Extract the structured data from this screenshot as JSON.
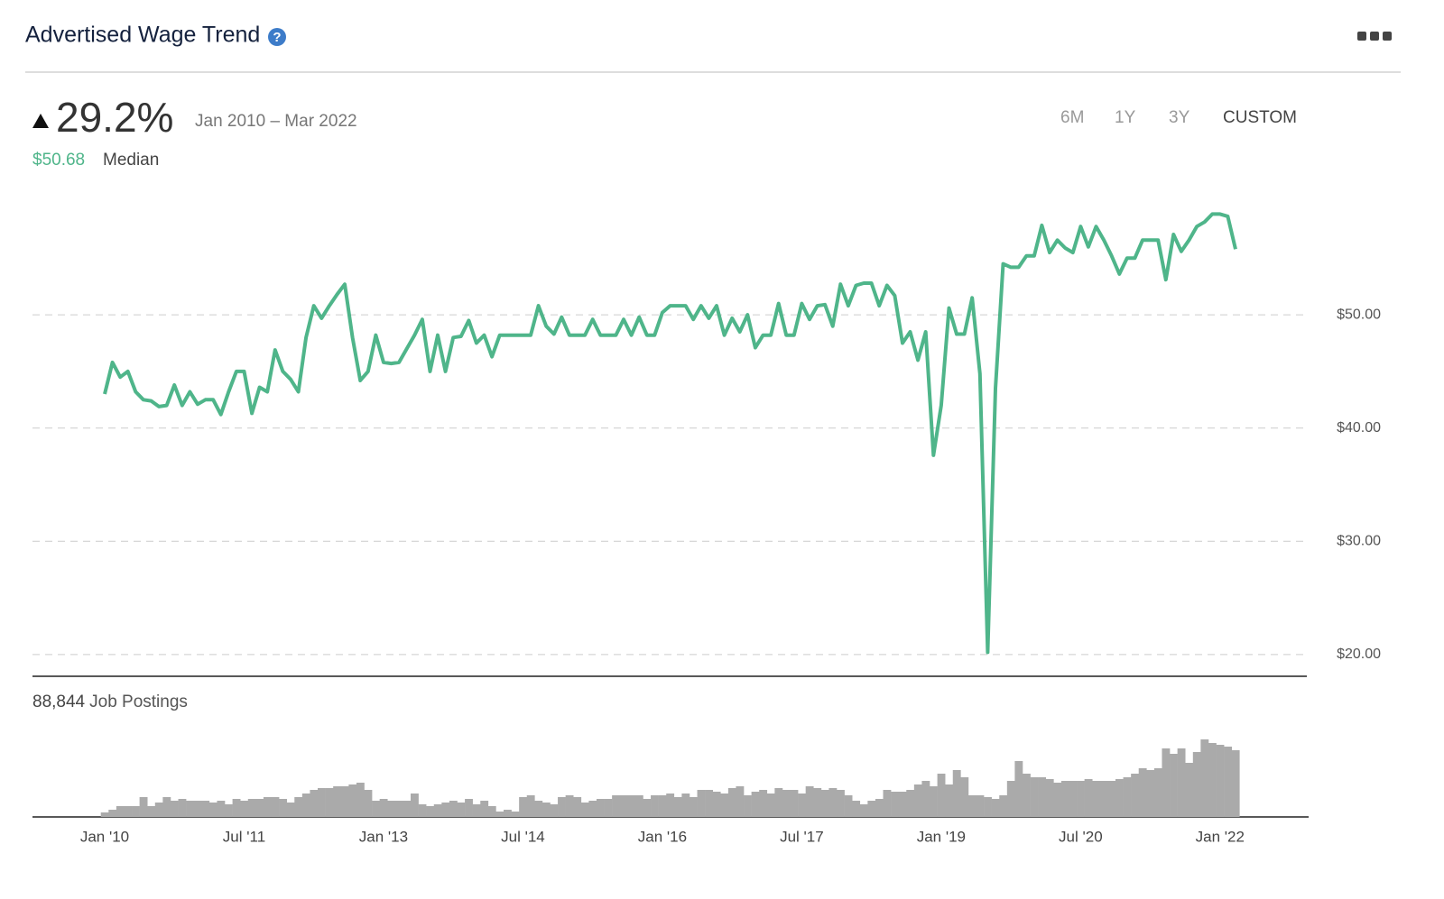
{
  "header": {
    "title": "Advertised Wage Trend"
  },
  "summary": {
    "change": "29.2%",
    "period": "Jan 2010 – Mar 2022",
    "median_value": "$50.68",
    "median_label": "Median"
  },
  "range_buttons": [
    "6M",
    "1Y",
    "3Y",
    "CUSTOM"
  ],
  "postings": {
    "count": "88,844",
    "label": "Job Postings"
  },
  "chart_data": [
    {
      "type": "line",
      "x": [
        "2010-01",
        "2010-02",
        "2010-03",
        "2010-04",
        "2010-05",
        "2010-06",
        "2010-07",
        "2010-08",
        "2010-09",
        "2010-10",
        "2010-11",
        "2010-12",
        "2011-01",
        "2011-02",
        "2011-03",
        "2011-04",
        "2011-05",
        "2011-06",
        "2011-07",
        "2011-08",
        "2011-09",
        "2011-10",
        "2011-11",
        "2011-12",
        "2012-01",
        "2012-02",
        "2012-03",
        "2012-04",
        "2012-05",
        "2012-06",
        "2012-07",
        "2012-08",
        "2012-09",
        "2012-10",
        "2012-11",
        "2012-12",
        "2013-01",
        "2013-02",
        "2013-03",
        "2013-04",
        "2013-05",
        "2013-06",
        "2013-07",
        "2013-08",
        "2013-09",
        "2013-10",
        "2013-11",
        "2013-12",
        "2014-01",
        "2014-02",
        "2014-03",
        "2014-04",
        "2014-05",
        "2014-06",
        "2014-07",
        "2014-08",
        "2014-09",
        "2014-10",
        "2014-11",
        "2014-12",
        "2015-01",
        "2015-02",
        "2015-03",
        "2015-04",
        "2015-05",
        "2015-06",
        "2015-07",
        "2015-08",
        "2015-09",
        "2015-10",
        "2015-11",
        "2015-12",
        "2016-01",
        "2016-02",
        "2016-03",
        "2016-04",
        "2016-05",
        "2016-06",
        "2016-07",
        "2016-08",
        "2016-09",
        "2016-10",
        "2016-11",
        "2016-12",
        "2017-01",
        "2017-02",
        "2017-03",
        "2017-04",
        "2017-05",
        "2017-06",
        "2017-07",
        "2017-08",
        "2017-09",
        "2017-10",
        "2017-11",
        "2017-12",
        "2018-01",
        "2018-02",
        "2018-03",
        "2018-04",
        "2018-05",
        "2018-06",
        "2018-07",
        "2018-08",
        "2018-09",
        "2018-10",
        "2018-11",
        "2018-12",
        "2019-01",
        "2019-02",
        "2019-03",
        "2019-04",
        "2019-05",
        "2019-06",
        "2019-07",
        "2019-08",
        "2019-09",
        "2019-10",
        "2019-11",
        "2019-12",
        "2020-01",
        "2020-02",
        "2020-03",
        "2020-04",
        "2020-05",
        "2020-06",
        "2020-07",
        "2020-08",
        "2020-09",
        "2020-10",
        "2020-11",
        "2020-12",
        "2021-01",
        "2021-02",
        "2021-03",
        "2021-04",
        "2021-05",
        "2021-06",
        "2021-07",
        "2021-08",
        "2021-09",
        "2021-10",
        "2021-11",
        "2021-12",
        "2022-01",
        "2022-02",
        "2022-03"
      ],
      "series": [
        {
          "name": "Median",
          "color": "#4fb58a",
          "values": [
            43.0,
            45.8,
            44.5,
            45.0,
            43.2,
            42.5,
            42.4,
            41.9,
            42.0,
            43.8,
            42.0,
            43.2,
            42.1,
            42.5,
            42.5,
            41.2,
            43.2,
            45.0,
            45.0,
            41.3,
            43.6,
            43.2,
            46.9,
            45.0,
            44.3,
            43.2,
            48.0,
            50.8,
            49.7,
            50.8,
            51.8,
            52.7,
            48.0,
            44.2,
            45.0,
            48.2,
            45.8,
            45.7,
            45.8,
            47.0,
            48.2,
            49.6,
            45.0,
            48.2,
            45.0,
            48.0,
            48.1,
            49.5,
            47.5,
            48.2,
            46.3,
            48.2,
            48.2,
            48.2,
            48.2,
            48.2,
            50.8,
            49.0,
            48.3,
            49.8,
            48.2,
            48.2,
            48.2,
            49.6,
            48.2,
            48.2,
            48.2,
            49.6,
            48.2,
            49.8,
            48.2,
            48.2,
            50.2,
            50.8,
            50.8,
            50.8,
            49.6,
            50.8,
            49.7,
            50.8,
            48.2,
            49.7,
            48.5,
            50.0,
            47.1,
            48.2,
            48.2,
            51.0,
            48.2,
            48.2,
            51.0,
            49.6,
            50.8,
            50.9,
            49.0,
            52.7,
            50.8,
            52.6,
            52.8,
            52.8,
            50.8,
            52.6,
            51.7,
            47.5,
            48.5,
            46.0,
            48.5,
            37.6,
            42.0,
            50.6,
            48.3,
            48.3,
            51.5,
            44.8,
            20.2,
            43.5,
            54.5,
            54.2,
            54.2,
            55.2,
            55.2,
            57.9,
            55.5,
            56.6,
            55.9,
            55.5,
            57.8,
            56.0,
            57.8,
            56.6,
            55.2,
            53.6,
            55.0,
            55.0,
            56.6,
            56.6,
            56.6,
            53.1,
            57.1,
            55.6,
            56.6,
            57.8,
            58.2,
            58.9,
            58.9,
            58.7,
            55.8
          ]
        }
      ],
      "ylim": [
        18,
        61
      ],
      "yticks": [
        {
          "value": 20,
          "label": "$20.00"
        },
        {
          "value": 30,
          "label": "$30.00"
        },
        {
          "value": 40,
          "label": "$40.00"
        },
        {
          "value": 50,
          "label": "$50.00"
        }
      ],
      "grid": true
    },
    {
      "type": "bar",
      "color": "#aaaaaa",
      "x": [
        "2010-01",
        "2010-02",
        "2010-03",
        "2010-04",
        "2010-05",
        "2010-06",
        "2010-07",
        "2010-08",
        "2010-09",
        "2010-10",
        "2010-11",
        "2010-12",
        "2011-01",
        "2011-02",
        "2011-03",
        "2011-04",
        "2011-05",
        "2011-06",
        "2011-07",
        "2011-08",
        "2011-09",
        "2011-10",
        "2011-11",
        "2011-12",
        "2012-01",
        "2012-02",
        "2012-03",
        "2012-04",
        "2012-05",
        "2012-06",
        "2012-07",
        "2012-08",
        "2012-09",
        "2012-10",
        "2012-11",
        "2012-12",
        "2013-01",
        "2013-02",
        "2013-03",
        "2013-04",
        "2013-05",
        "2013-06",
        "2013-07",
        "2013-08",
        "2013-09",
        "2013-10",
        "2013-11",
        "2013-12",
        "2014-01",
        "2014-02",
        "2014-03",
        "2014-04",
        "2014-05",
        "2014-06",
        "2014-07",
        "2014-08",
        "2014-09",
        "2014-10",
        "2014-11",
        "2014-12",
        "2015-01",
        "2015-02",
        "2015-03",
        "2015-04",
        "2015-05",
        "2015-06",
        "2015-07",
        "2015-08",
        "2015-09",
        "2015-10",
        "2015-11",
        "2015-12",
        "2016-01",
        "2016-02",
        "2016-03",
        "2016-04",
        "2016-05",
        "2016-06",
        "2016-07",
        "2016-08",
        "2016-09",
        "2016-10",
        "2016-11",
        "2016-12",
        "2017-01",
        "2017-02",
        "2017-03",
        "2017-04",
        "2017-05",
        "2017-06",
        "2017-07",
        "2017-08",
        "2017-09",
        "2017-10",
        "2017-11",
        "2017-12",
        "2018-01",
        "2018-02",
        "2018-03",
        "2018-04",
        "2018-05",
        "2018-06",
        "2018-07",
        "2018-08",
        "2018-09",
        "2018-10",
        "2018-11",
        "2018-12",
        "2019-01",
        "2019-02",
        "2019-03",
        "2019-04",
        "2019-05",
        "2019-06",
        "2019-07",
        "2019-08",
        "2019-09",
        "2019-10",
        "2019-11",
        "2019-12",
        "2020-01",
        "2020-02",
        "2020-03",
        "2020-04",
        "2020-05",
        "2020-06",
        "2020-07",
        "2020-08",
        "2020-09",
        "2020-10",
        "2020-11",
        "2020-12",
        "2021-01",
        "2021-02",
        "2021-03",
        "2021-04",
        "2021-05",
        "2021-06",
        "2021-07",
        "2021-08",
        "2021-09",
        "2021-10",
        "2021-11",
        "2021-12",
        "2022-01",
        "2022-02",
        "2022-03"
      ],
      "values": [
        100,
        160,
        240,
        240,
        240,
        440,
        240,
        320,
        440,
        360,
        400,
        360,
        360,
        360,
        320,
        360,
        280,
        400,
        360,
        400,
        400,
        440,
        440,
        400,
        320,
        440,
        520,
        600,
        640,
        640,
        680,
        680,
        720,
        760,
        600,
        360,
        400,
        360,
        360,
        360,
        520,
        280,
        240,
        280,
        320,
        360,
        320,
        400,
        280,
        360,
        240,
        120,
        160,
        120,
        440,
        480,
        360,
        320,
        280,
        440,
        480,
        440,
        320,
        360,
        400,
        400,
        480,
        480,
        480,
        480,
        400,
        480,
        480,
        520,
        440,
        520,
        440,
        600,
        600,
        560,
        520,
        640,
        680,
        480,
        560,
        600,
        520,
        640,
        600,
        600,
        520,
        680,
        640,
        600,
        640,
        600,
        480,
        360,
        280,
        360,
        400,
        600,
        560,
        560,
        600,
        720,
        800,
        680,
        960,
        720,
        1040,
        880,
        480,
        480,
        440,
        400,
        480,
        800,
        1240,
        960,
        880,
        880,
        840,
        760,
        800,
        800,
        800,
        840,
        800,
        800,
        800,
        840,
        880,
        960,
        1080,
        1040,
        1080,
        1520,
        1400,
        1520,
        1200,
        1440,
        1720,
        1640,
        1600,
        1560,
        1480
      ],
      "xticks": [
        {
          "value": "2010-01",
          "label": "Jan '10"
        },
        {
          "value": "2011-07",
          "label": "Jul '11"
        },
        {
          "value": "2013-01",
          "label": "Jan '13"
        },
        {
          "value": "2014-07",
          "label": "Jul '14"
        },
        {
          "value": "2016-01",
          "label": "Jan '16"
        },
        {
          "value": "2017-07",
          "label": "Jul '17"
        },
        {
          "value": "2019-01",
          "label": "Jan '19"
        },
        {
          "value": "2020-07",
          "label": "Jul '20"
        },
        {
          "value": "2022-01",
          "label": "Jan '22"
        }
      ]
    }
  ]
}
